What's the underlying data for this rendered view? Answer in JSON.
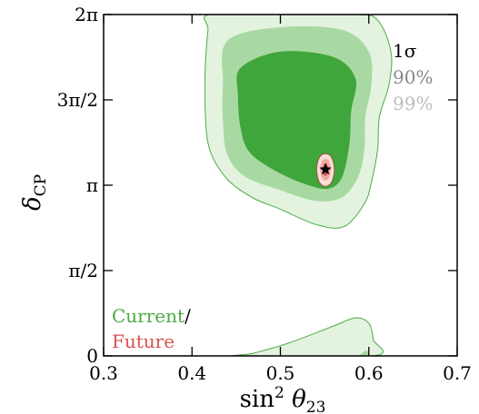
{
  "chart_data": {
    "type": "contour",
    "xlabel": "sin² θ₂₃",
    "ylabel": "δ_CP",
    "xlim": [
      0.3,
      0.7
    ],
    "ylim": [
      0,
      6.2832
    ],
    "x_ticks": [
      {
        "value": 0.3,
        "label": "0.3"
      },
      {
        "value": 0.4,
        "label": "0.4"
      },
      {
        "value": 0.5,
        "label": "0.5"
      },
      {
        "value": 0.6,
        "label": "0.6"
      },
      {
        "value": 0.7,
        "label": "0.7"
      }
    ],
    "y_ticks": [
      {
        "value": 0,
        "label": "0"
      },
      {
        "value": 1.5708,
        "label": "π/2"
      },
      {
        "value": 3.1416,
        "label": "π"
      },
      {
        "value": 4.7124,
        "label": "3π/2"
      },
      {
        "value": 6.2832,
        "label": "2π"
      }
    ],
    "confidence_levels": [
      {
        "label": "1σ",
        "color": "#000000"
      },
      {
        "label": "90%",
        "color": "#888888"
      },
      {
        "label": "99%",
        "color": "#bbbbbb"
      }
    ],
    "datasets": [
      {
        "name": "Current",
        "color": "#4daa46",
        "fill_colors": [
          "#3ea63a",
          "#a9d9a2",
          "#e3f3df"
        ]
      },
      {
        "name": "Future",
        "color": "#d9534f",
        "fill_colors": [
          "#d9534f",
          "#f0a8a0",
          "#f8e0d8"
        ]
      }
    ],
    "best_fit": {
      "x": 0.551,
      "y": 3.43
    },
    "contours": {
      "current_99": [
        [
          [
            0.42,
            6.2832
          ],
          [
            0.5,
            6.2832
          ],
          [
            0.585,
            6.2832
          ],
          [
            0.61,
            6.18
          ],
          [
            0.625,
            5.6
          ],
          [
            0.623,
            5.0
          ],
          [
            0.612,
            4.4
          ],
          [
            0.61,
            3.8
          ],
          [
            0.603,
            3.2
          ],
          [
            0.595,
            2.8
          ],
          [
            0.572,
            2.38
          ],
          [
            0.54,
            2.42
          ],
          [
            0.5,
            2.7
          ],
          [
            0.47,
            2.9
          ],
          [
            0.44,
            3.25
          ],
          [
            0.42,
            3.8
          ],
          [
            0.415,
            4.5
          ],
          [
            0.415,
            5.3
          ],
          [
            0.418,
            6.0
          ]
        ],
        [
          [
            0.455,
            0
          ],
          [
            0.47,
            0.05
          ],
          [
            0.51,
            0.24
          ],
          [
            0.56,
            0.55
          ],
          [
            0.585,
            0.7
          ],
          [
            0.6,
            0.6
          ],
          [
            0.605,
            0.3
          ],
          [
            0.605,
            0
          ]
        ]
      ],
      "current_90": [
        [
          [
            0.44,
            5.8
          ],
          [
            0.5,
            6.05
          ],
          [
            0.57,
            6.0
          ],
          [
            0.6,
            5.6
          ],
          [
            0.603,
            5.0
          ],
          [
            0.596,
            4.4
          ],
          [
            0.595,
            3.8
          ],
          [
            0.588,
            3.3
          ],
          [
            0.57,
            2.92
          ],
          [
            0.54,
            2.85
          ],
          [
            0.5,
            3.05
          ],
          [
            0.46,
            3.3
          ],
          [
            0.44,
            3.7
          ],
          [
            0.435,
            4.3
          ],
          [
            0.435,
            5.0
          ]
        ],
        [
          [
            0.59,
            0
          ],
          [
            0.597,
            0.1
          ],
          [
            0.6,
            0
          ]
        ]
      ],
      "current_1sigma": [
        [
          [
            0.455,
            5.3
          ],
          [
            0.5,
            5.6
          ],
          [
            0.56,
            5.5
          ],
          [
            0.585,
            5.1
          ],
          [
            0.58,
            4.5
          ],
          [
            0.578,
            3.9
          ],
          [
            0.57,
            3.3
          ],
          [
            0.555,
            3.08
          ],
          [
            0.53,
            3.15
          ],
          [
            0.495,
            3.4
          ],
          [
            0.465,
            3.75
          ],
          [
            0.455,
            4.2
          ],
          [
            0.452,
            4.8
          ]
        ]
      ],
      "future_99": [
        [
          [
            0.541,
            3.43
          ],
          [
            0.544,
            3.65
          ],
          [
            0.551,
            3.72
          ],
          [
            0.558,
            3.65
          ],
          [
            0.561,
            3.43
          ],
          [
            0.558,
            3.2
          ],
          [
            0.551,
            3.12
          ],
          [
            0.544,
            3.2
          ]
        ]
      ],
      "future_90": [
        [
          [
            0.545,
            3.43
          ],
          [
            0.547,
            3.58
          ],
          [
            0.551,
            3.63
          ],
          [
            0.555,
            3.58
          ],
          [
            0.557,
            3.43
          ],
          [
            0.555,
            3.28
          ],
          [
            0.551,
            3.23
          ],
          [
            0.547,
            3.28
          ]
        ]
      ],
      "future_1sigma": [
        [
          [
            0.548,
            3.43
          ],
          [
            0.549,
            3.52
          ],
          [
            0.551,
            3.55
          ],
          [
            0.553,
            3.52
          ],
          [
            0.554,
            3.43
          ],
          [
            0.553,
            3.34
          ],
          [
            0.551,
            3.31
          ],
          [
            0.549,
            3.34
          ]
        ]
      ]
    }
  }
}
